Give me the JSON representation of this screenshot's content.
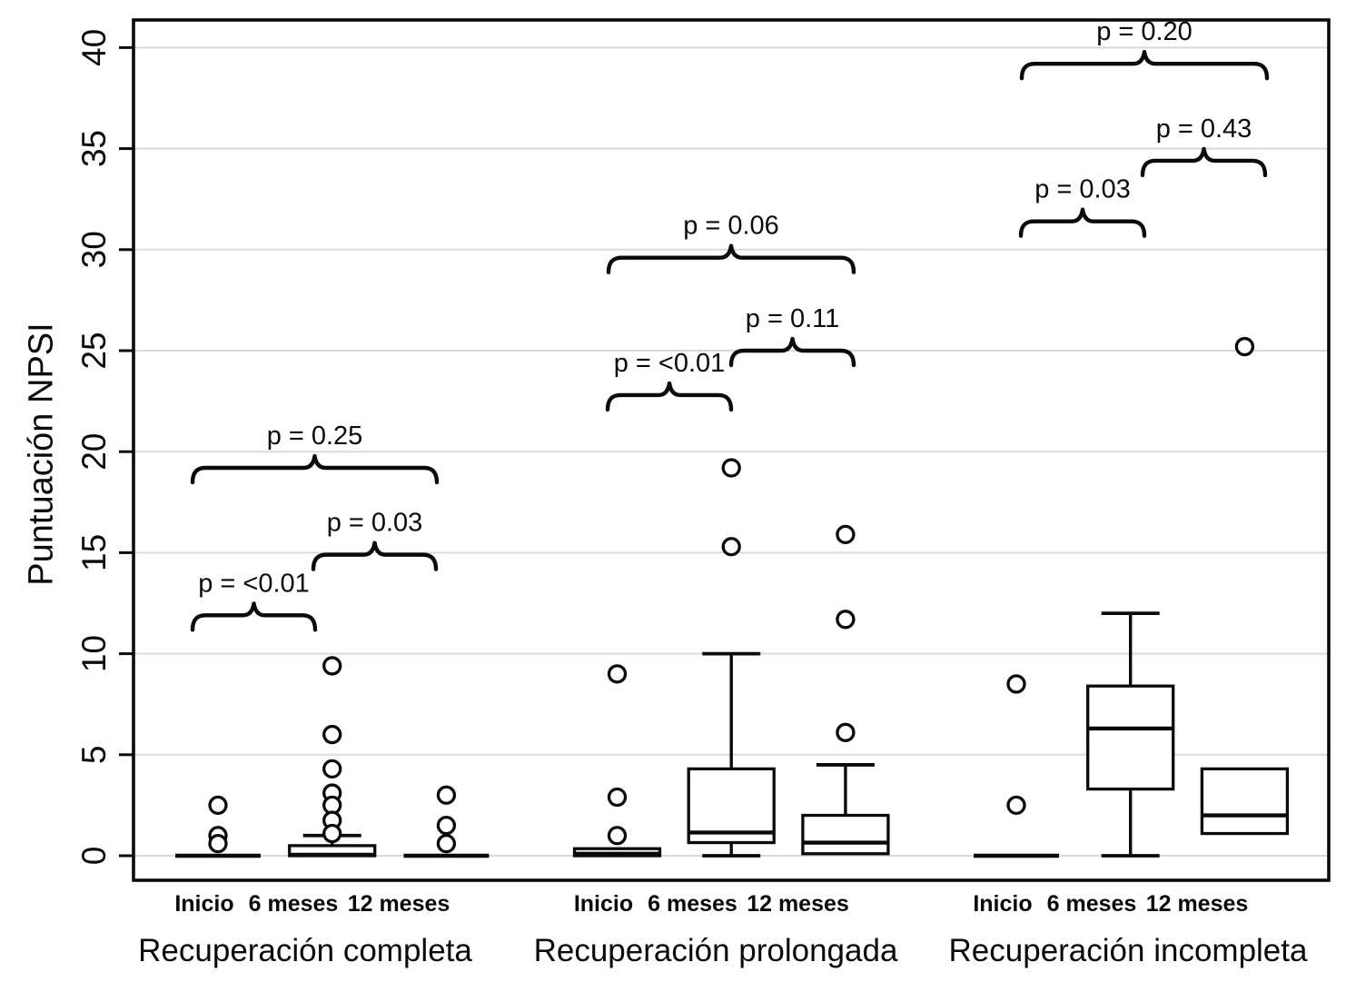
{
  "chart_data": {
    "type": "boxplot",
    "title": "",
    "ylabel": "Puntuación NPSI",
    "xlabel": "",
    "ylim": [
      0,
      41.4
    ],
    "yticks": [
      0,
      5,
      10,
      15,
      20,
      25,
      30,
      35,
      40
    ],
    "grid": "horizontal",
    "categories": [
      "Inicio",
      "6 meses",
      "12 meses"
    ],
    "colors": {
      "ink": "#0a0a0a",
      "grid": "#d9d9d9",
      "box_fill": "#ffffff",
      "background": "#ffffff"
    },
    "groups": [
      {
        "label": "Recuperación completa",
        "series": [
          {
            "time": "Inicio",
            "type": "flat",
            "value": 0,
            "outliers": [
              2.5,
              1.0,
              0.6
            ]
          },
          {
            "time": "6 meses",
            "type": "box",
            "q1": 0,
            "median": 0.05,
            "q3": 0.5,
            "whisker_low": null,
            "whisker_high": 1.0,
            "outliers": [
              9.4,
              6.0,
              4.3,
              3.1,
              2.5,
              1.75,
              1.1
            ]
          },
          {
            "time": "12 meses",
            "type": "flat",
            "value": 0,
            "outliers": [
              3.0,
              1.5,
              0.6
            ]
          }
        ],
        "comparisons": [
          {
            "label": "p = <0.01",
            "from": "Inicio",
            "to": "6 meses",
            "y": 11.9
          },
          {
            "label": "p = 0.03",
            "from": "6 meses",
            "to": "12 meses",
            "y": 14.9
          },
          {
            "label": "p = 0.25",
            "from": "Inicio",
            "to": "12 meses",
            "y": 19.2
          }
        ]
      },
      {
        "label": "Recuperación prolongada",
        "series": [
          {
            "time": "Inicio",
            "type": "box",
            "q1": 0,
            "median": 0.1,
            "q3": 0.35,
            "whisker_low": null,
            "whisker_high": null,
            "outliers": [
              9.0,
              2.9,
              1.0
            ]
          },
          {
            "time": "6 meses",
            "type": "box",
            "q1": 0.65,
            "median": 1.15,
            "q3": 4.3,
            "whisker_low": 0,
            "whisker_high": 10.0,
            "outliers": [
              19.2,
              15.3
            ]
          },
          {
            "time": "12 meses",
            "type": "box",
            "q1": 0.1,
            "median": 0.65,
            "q3": 2.0,
            "whisker_low": null,
            "whisker_high": 4.5,
            "outliers": [
              15.9,
              11.7,
              6.1
            ]
          }
        ],
        "comparisons": [
          {
            "label": "p = <0.01",
            "from": "Inicio",
            "to": "6 meses",
            "y": 22.8
          },
          {
            "label": "p = 0.11",
            "from": "6 meses",
            "to": "12 meses",
            "y": 25.0
          },
          {
            "label": "p = 0.06",
            "from": "Inicio",
            "to": "12 meses",
            "y": 29.6
          }
        ]
      },
      {
        "label": "Recuperación incompleta",
        "series": [
          {
            "time": "Inicio",
            "type": "flat",
            "value": 0,
            "outliers": [
              8.5,
              2.5
            ]
          },
          {
            "time": "6 meses",
            "type": "box",
            "q1": 3.3,
            "median": 6.3,
            "q3": 8.4,
            "whisker_low": 0,
            "whisker_high": 12.0,
            "outliers": []
          },
          {
            "time": "12 meses",
            "type": "box",
            "q1": 1.1,
            "median": 2.0,
            "q3": 4.3,
            "whisker_low": null,
            "whisker_high": null,
            "outliers": [
              25.2
            ]
          }
        ],
        "comparisons": [
          {
            "label": "p = 0.03",
            "from": "Inicio",
            "to": "6 meses",
            "y": 31.4
          },
          {
            "label": "p = 0.43",
            "from": "6 meses",
            "to": "12 meses",
            "y": 34.4
          },
          {
            "label": "p = 0.20",
            "from": "Inicio",
            "to": "12 meses",
            "y": 39.2
          }
        ]
      }
    ]
  }
}
